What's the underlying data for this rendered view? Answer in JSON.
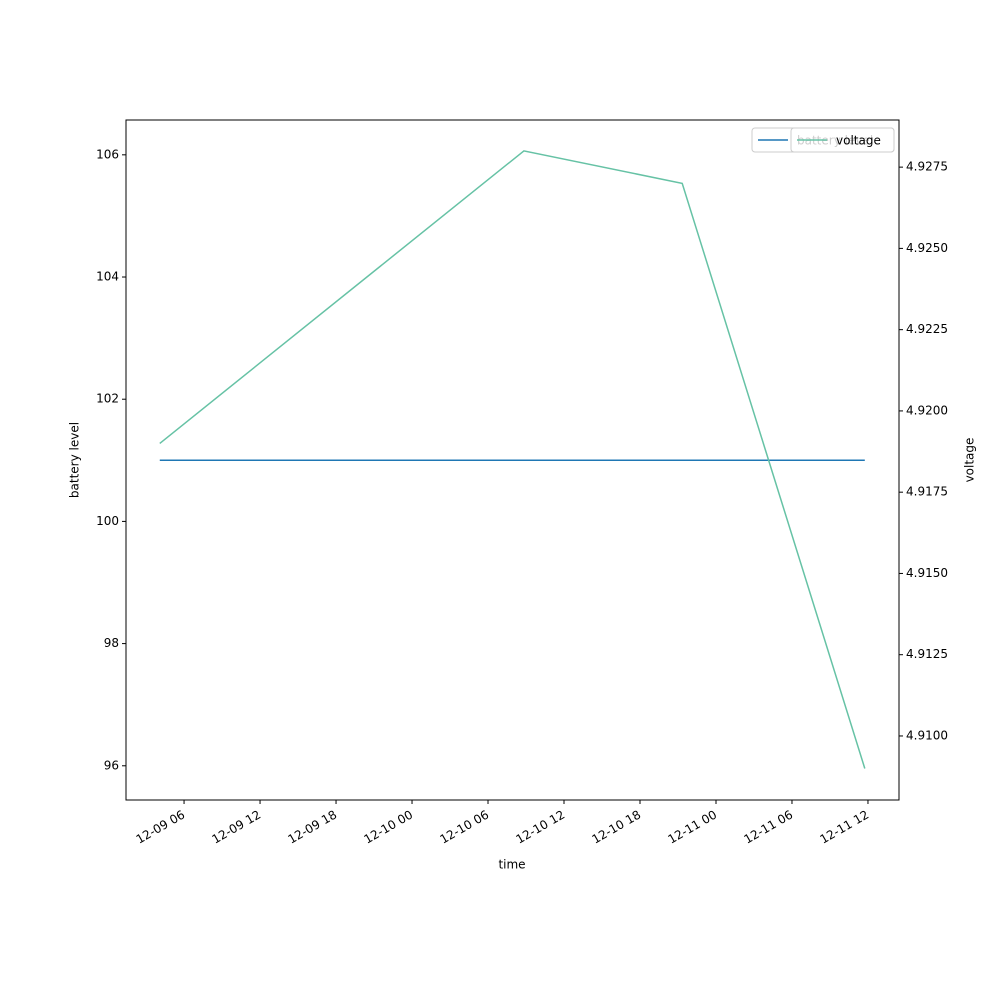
{
  "chart_data": {
    "type": "line",
    "x": [
      "12-09 04:05",
      "12-10 08:50",
      "12-10 21:20",
      "12-11 11:45"
    ],
    "series": [
      {
        "name": "battery level",
        "color": "#1f77b4",
        "values": [
          101,
          101,
          101,
          101
        ],
        "axis": "y"
      },
      {
        "name": "voltage",
        "color": "#66c2a5",
        "values": [
          4.919,
          4.928,
          4.927,
          4.909
        ],
        "axis": "y2"
      }
    ],
    "xlabel": "time",
    "ylabel": "battery level",
    "y2label": "voltage",
    "xlim": [
      "12-09 01:25",
      "12-11 14:27"
    ],
    "xticks": [
      "12-09 06",
      "12-09 12",
      "12-09 18",
      "12-10 00",
      "12-10 06",
      "12-10 12",
      "12-10 18",
      "12-11 00",
      "12-11 06",
      "12-11 12"
    ],
    "ylim": [
      95.44,
      106.57
    ],
    "yticks": [
      96,
      98,
      100,
      102,
      104,
      106
    ],
    "y2lim": [
      4.90803,
      4.92895
    ],
    "y2ticks": [
      {
        "value": 4.91,
        "label": "4.9100"
      },
      4.9125,
      {
        "value": 4.915,
        "label": "4.9150"
      },
      4.9175,
      {
        "value": 4.92,
        "label": "4.9200"
      },
      4.9225,
      {
        "value": 4.925,
        "label": "4.9250"
      },
      4.9275
    ],
    "legend": "upper right"
  }
}
